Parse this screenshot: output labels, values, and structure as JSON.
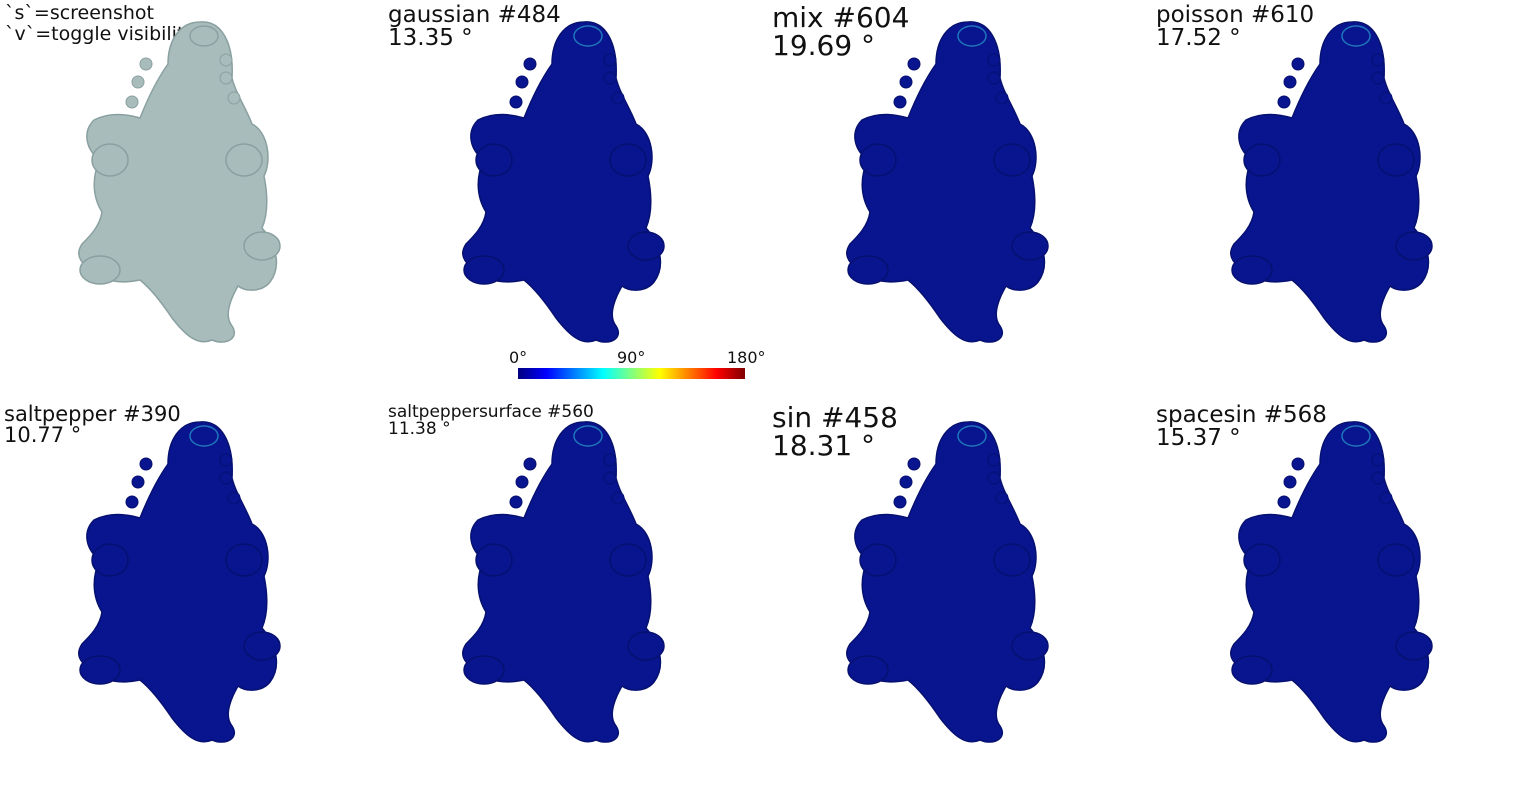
{
  "help": {
    "line1": "`s`=screenshot",
    "line2": "`v`=toggle visibility"
  },
  "panels": [
    {
      "name": "reference",
      "title": "",
      "value": ""
    },
    {
      "name": "gaussian",
      "title": "gaussian #484",
      "value": "13.35 °"
    },
    {
      "name": "mix",
      "title": "mix #604",
      "value": "19.69 °"
    },
    {
      "name": "poisson",
      "title": "poisson #610",
      "value": "17.52 °"
    },
    {
      "name": "saltpepper",
      "title": "saltpepper #390",
      "value": "10.77 °"
    },
    {
      "name": "saltpeppersurface",
      "title": "saltpeppersurface #560",
      "value": "11.38 °"
    },
    {
      "name": "sin",
      "title": "sin #458",
      "value": "18.31 °"
    },
    {
      "name": "spacesin",
      "title": "spacesin #568",
      "value": "15.37 °"
    }
  ],
  "colorbar": {
    "min_label": "0°",
    "mid_label": "90°",
    "max_label": "180°"
  },
  "colors": {
    "reference_fill": "#a9bcbc",
    "error_fill": "#08158f",
    "error_dark": "#061070",
    "highlight": "#2fb8d8",
    "background": "#ffffff"
  }
}
